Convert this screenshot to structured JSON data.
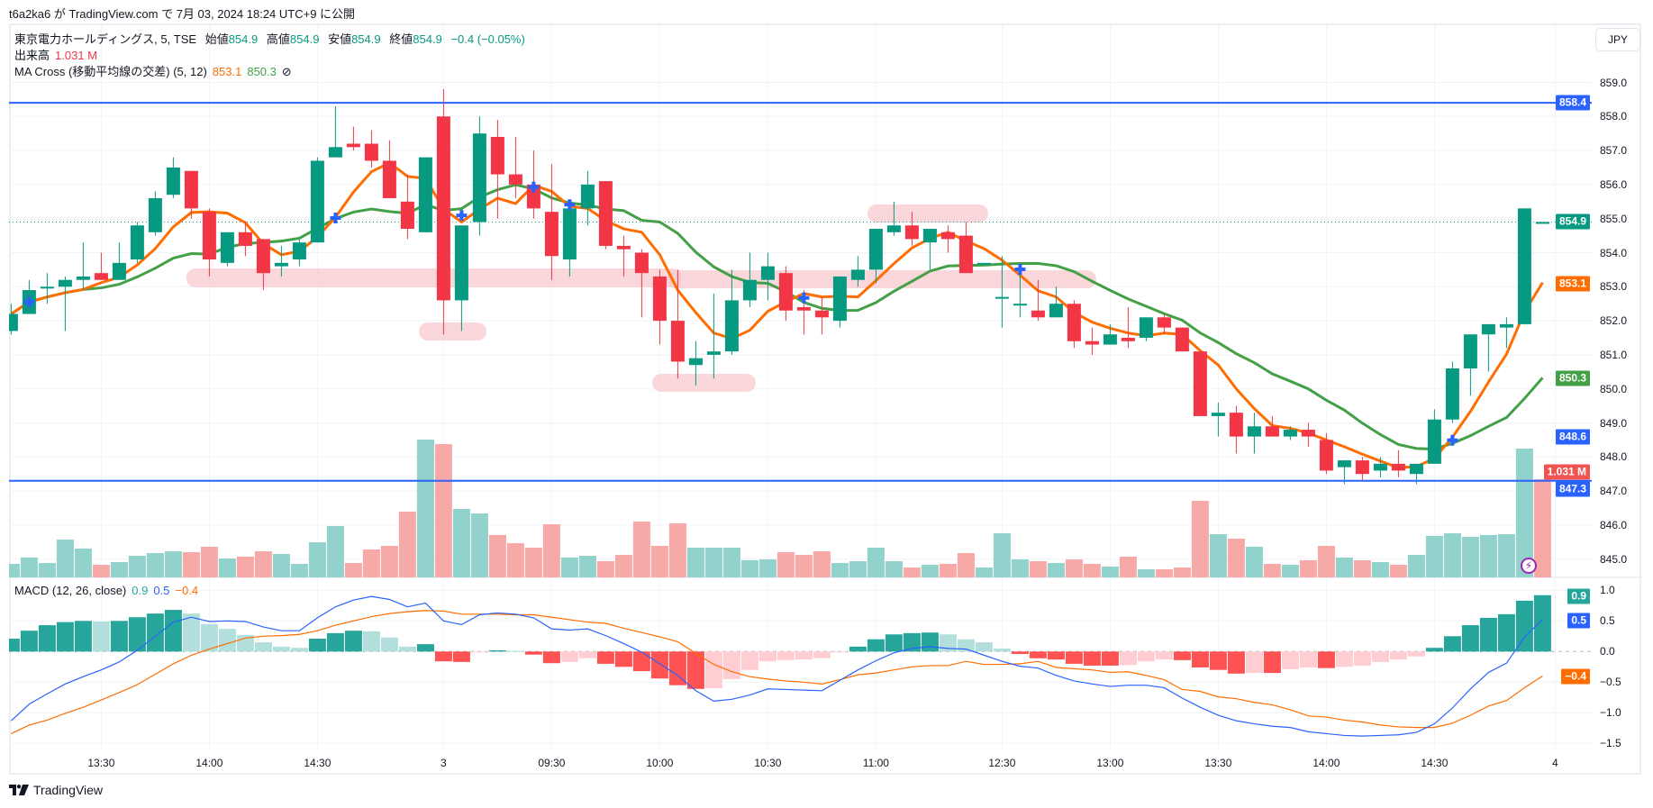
{
  "header": {
    "published": "t6a2ka6 が TradingView.com で 7月 03, 2024 18:24 UTC+9 に公開",
    "symbol": "東京電力ホールディングス, 5, TSE",
    "open_label": "始値",
    "open": "854.9",
    "high_label": "高値",
    "high": "854.9",
    "low_label": "安値",
    "low": "854.9",
    "close_label": "終値",
    "close": "854.9",
    "change": "−0.4 (−0.05%)",
    "volume_label": "出来高",
    "volume": "1.031 M",
    "ma_label": "MA Cross (移動平均線の交差) (5, 12)",
    "ma_fast": "853.1",
    "ma_slow": "850.3",
    "ma_hidden_icon": "⊘",
    "macd_label": "MACD (12, 26, close)",
    "macd_hist": "0.9",
    "macd_line": "0.5",
    "macd_signal": "−0.4"
  },
  "currency_button": "JPY",
  "price_ticks": [
    "859.0",
    "858.0",
    "857.0",
    "856.0",
    "855.0",
    "854.0",
    "853.0",
    "852.0",
    "851.0",
    "850.0",
    "849.0",
    "848.0",
    "847.0",
    "846.0",
    "845.0"
  ],
  "macd_ticks": [
    "1.0",
    "0.5",
    "0.0",
    "−0.5",
    "−1.0",
    "−1.5"
  ],
  "time_ticks": [
    "13:30",
    "14:00",
    "14:30",
    "3",
    "09:30",
    "10:00",
    "10:30",
    "11:00",
    "12:30",
    "13:00",
    "13:30",
    "14:00",
    "14:30",
    "4"
  ],
  "price_badges": [
    {
      "text": "858.4",
      "color": "#2962ff"
    },
    {
      "text": "854.9",
      "color": "#089981"
    },
    {
      "text": "853.1",
      "color": "#ff6d00"
    },
    {
      "text": "850.3",
      "color": "#43a047"
    },
    {
      "text": "848.6",
      "color": "#2962ff"
    },
    {
      "text": "1.031 M",
      "color": "#f05350"
    },
    {
      "text": "847.3",
      "color": "#2962ff"
    }
  ],
  "macd_badges": [
    {
      "text": "0.9",
      "color": "#26a69a"
    },
    {
      "text": "0.5",
      "color": "#2962ff"
    },
    {
      "text": "−0.4",
      "color": "#ff6d00"
    }
  ],
  "logo": "TradingView",
  "colors": {
    "up": "#089981",
    "down": "#f23645",
    "vol_up": "#92d2cc",
    "vol_down": "#f7a9a7",
    "ma_fast": "#ff6d00",
    "ma_slow": "#43a047",
    "hline": "#2962ff",
    "macd": "#2962ff",
    "signal": "#ff6d00",
    "hist_up_strong": "#26a69a",
    "hist_up_weak": "#b2dfdb",
    "hist_down_strong": "#ff5252",
    "hist_down_weak": "#ffcdd2",
    "highlight": "#f8c9ce"
  },
  "chart_data": {
    "type": "candlestick",
    "interval": "5",
    "ohlc": [
      [
        851.7,
        852.5,
        851.6,
        852.2
      ],
      [
        852.2,
        853.2,
        852.2,
        852.9
      ],
      [
        853.0,
        853.4,
        852.5,
        853.0
      ],
      [
        853.0,
        853.3,
        851.7,
        853.2
      ],
      [
        853.2,
        854.3,
        852.9,
        853.3
      ],
      [
        853.4,
        854.0,
        853.2,
        853.2
      ],
      [
        853.2,
        854.3,
        853.2,
        853.7
      ],
      [
        853.8,
        854.9,
        853.7,
        854.8
      ],
      [
        854.6,
        855.8,
        854.5,
        855.6
      ],
      [
        855.7,
        856.8,
        855.6,
        856.5
      ],
      [
        856.4,
        856.4,
        855.0,
        855.3
      ],
      [
        855.2,
        855.3,
        853.3,
        853.8
      ],
      [
        853.7,
        854.6,
        853.6,
        854.6
      ],
      [
        854.6,
        854.9,
        853.9,
        854.2
      ],
      [
        854.4,
        854.4,
        852.9,
        853.4
      ],
      [
        853.6,
        854.2,
        853.3,
        853.7
      ],
      [
        853.8,
        854.4,
        853.6,
        854.3
      ],
      [
        854.3,
        856.8,
        854.3,
        856.7
      ],
      [
        856.8,
        858.3,
        856.8,
        857.1
      ],
      [
        857.2,
        857.7,
        857.0,
        857.1
      ],
      [
        857.2,
        857.6,
        856.5,
        856.7
      ],
      [
        856.7,
        857.3,
        855.6,
        855.6
      ],
      [
        855.5,
        856.3,
        854.4,
        854.7
      ],
      [
        854.6,
        856.8,
        854.6,
        856.8
      ],
      [
        858.0,
        858.8,
        851.6,
        852.6
      ],
      [
        852.6,
        854.8,
        851.7,
        854.8
      ],
      [
        854.9,
        858.0,
        854.5,
        857.5
      ],
      [
        857.4,
        857.9,
        855.0,
        856.3
      ],
      [
        856.3,
        857.4,
        855.6,
        856.0
      ],
      [
        856.0,
        857.0,
        855.0,
        855.3
      ],
      [
        855.2,
        856.6,
        853.2,
        853.9
      ],
      [
        853.8,
        855.3,
        853.3,
        855.3
      ],
      [
        855.3,
        856.4,
        854.8,
        856.0
      ],
      [
        856.1,
        856.1,
        854.1,
        854.2
      ],
      [
        854.2,
        854.5,
        853.3,
        854.1
      ],
      [
        854.0,
        854.1,
        852.1,
        853.4
      ],
      [
        853.3,
        853.5,
        851.3,
        852.0
      ],
      [
        852.0,
        853.5,
        850.3,
        850.8
      ],
      [
        850.7,
        851.4,
        850.1,
        850.9
      ],
      [
        851.0,
        852.8,
        850.3,
        851.1
      ],
      [
        851.1,
        853.5,
        851.0,
        852.6
      ],
      [
        852.6,
        854.0,
        852.4,
        853.2
      ],
      [
        853.2,
        854.0,
        852.6,
        853.6
      ],
      [
        853.4,
        853.6,
        852.0,
        852.3
      ],
      [
        852.4,
        852.9,
        851.6,
        852.3
      ],
      [
        852.3,
        852.7,
        851.6,
        852.1
      ],
      [
        852.0,
        853.3,
        851.8,
        853.3
      ],
      [
        853.2,
        853.9,
        853.0,
        853.5
      ],
      [
        853.5,
        854.7,
        853.1,
        854.7
      ],
      [
        854.6,
        855.5,
        854.5,
        854.8
      ],
      [
        854.8,
        855.2,
        854.2,
        854.4
      ],
      [
        854.3,
        854.7,
        853.5,
        854.7
      ],
      [
        854.6,
        854.8,
        854.0,
        854.4
      ],
      [
        854.5,
        854.9,
        853.4,
        853.4
      ],
      [
        853.7,
        853.7,
        853.7,
        853.7
      ],
      [
        852.7,
        853.9,
        851.8,
        852.7
      ],
      [
        852.5,
        853.5,
        852.1,
        852.5
      ],
      [
        852.3,
        853.2,
        852.0,
        852.1
      ],
      [
        852.1,
        853.0,
        852.1,
        852.5
      ],
      [
        852.5,
        852.6,
        851.2,
        851.4
      ],
      [
        851.4,
        851.8,
        851.0,
        851.3
      ],
      [
        851.3,
        851.9,
        851.3,
        851.6
      ],
      [
        851.5,
        852.4,
        851.2,
        851.4
      ],
      [
        851.5,
        852.1,
        851.4,
        852.1
      ],
      [
        852.1,
        852.2,
        851.6,
        851.8
      ],
      [
        851.8,
        851.8,
        851.1,
        851.1
      ],
      [
        851.1,
        851.1,
        849.2,
        849.2
      ],
      [
        849.2,
        849.6,
        848.6,
        849.3
      ],
      [
        849.3,
        849.5,
        848.1,
        848.6
      ],
      [
        848.6,
        849.3,
        848.1,
        848.9
      ],
      [
        848.9,
        849.2,
        848.6,
        848.6
      ],
      [
        848.6,
        848.9,
        848.5,
        848.8
      ],
      [
        848.8,
        849.0,
        848.3,
        848.6
      ],
      [
        848.5,
        848.7,
        847.5,
        847.6
      ],
      [
        847.7,
        847.9,
        847.2,
        847.9
      ],
      [
        847.9,
        848.0,
        847.3,
        847.5
      ],
      [
        847.6,
        848.0,
        847.4,
        847.8
      ],
      [
        847.8,
        848.2,
        847.4,
        847.6
      ],
      [
        847.5,
        847.8,
        847.2,
        847.8
      ],
      [
        847.8,
        849.4,
        847.8,
        849.1
      ],
      [
        849.1,
        850.8,
        849.0,
        850.6
      ],
      [
        850.6,
        851.6,
        849.8,
        851.6
      ],
      [
        851.6,
        851.9,
        850.5,
        851.9
      ],
      [
        851.8,
        852.1,
        851.2,
        851.9
      ],
      [
        851.9,
        855.3,
        851.9,
        855.3
      ],
      [
        854.9,
        854.9,
        854.9,
        854.9
      ]
    ],
    "volume_millions": [
      0.142,
      0.208,
      0.151,
      0.397,
      0.303,
      0.132,
      0.161,
      0.227,
      0.255,
      0.274,
      0.265,
      0.322,
      0.199,
      0.218,
      0.274,
      0.246,
      0.142,
      0.369,
      0.539,
      0.151,
      0.293,
      0.331,
      0.691,
      1.447,
      1.4,
      0.719,
      0.672,
      0.445,
      0.359,
      0.312,
      0.558,
      0.208,
      0.227,
      0.17,
      0.236,
      0.586,
      0.331,
      0.568,
      0.312,
      0.312,
      0.312,
      0.18,
      0.189,
      0.265,
      0.236,
      0.274,
      0.151,
      0.17,
      0.312,
      0.17,
      0.104,
      0.132,
      0.142,
      0.255,
      0.104,
      0.463,
      0.189,
      0.17,
      0.151,
      0.189,
      0.142,
      0.114,
      0.218,
      0.085,
      0.085,
      0.104,
      0.804,
      0.454,
      0.407,
      0.322,
      0.142,
      0.132,
      0.18,
      0.331,
      0.208,
      0.18,
      0.161,
      0.132,
      0.236,
      0.435,
      0.463,
      0.426,
      0.445,
      0.454,
      1.353,
      1.031
    ],
    "volume_up": [
      1,
      1,
      1,
      1,
      1,
      0,
      1,
      1,
      1,
      1,
      0,
      0,
      1,
      0,
      0,
      1,
      1,
      1,
      1,
      0,
      0,
      0,
      0,
      1,
      0,
      1,
      1,
      0,
      0,
      0,
      0,
      1,
      1,
      0,
      0,
      0,
      0,
      0,
      1,
      1,
      1,
      1,
      1,
      0,
      0,
      0,
      1,
      1,
      1,
      1,
      0,
      1,
      0,
      0,
      1,
      1,
      1,
      0,
      1,
      0,
      0,
      1,
      0,
      1,
      0,
      0,
      0,
      1,
      0,
      1,
      0,
      1,
      0,
      0,
      1,
      0,
      1,
      0,
      1,
      1,
      1,
      1,
      1,
      1,
      1,
      0
    ],
    "ma_periods": [
      5,
      12
    ],
    "ma_cross_bars": [
      1,
      18,
      25,
      29,
      31,
      44,
      56,
      80
    ],
    "horizontal_lines": [
      858.4,
      847.3
    ],
    "last_price": 854.9,
    "price_range": [
      844.6,
      859.6
    ],
    "macd_line": [
      -1.13,
      -0.86,
      -0.69,
      -0.53,
      -0.41,
      -0.3,
      -0.17,
      0.02,
      0.25,
      0.48,
      0.56,
      0.49,
      0.5,
      0.49,
      0.4,
      0.34,
      0.34,
      0.55,
      0.73,
      0.84,
      0.9,
      0.85,
      0.73,
      0.79,
      0.5,
      0.44,
      0.6,
      0.63,
      0.61,
      0.55,
      0.37,
      0.35,
      0.37,
      0.26,
      0.13,
      -0.01,
      -0.2,
      -0.39,
      -0.64,
      -0.81,
      -0.78,
      -0.71,
      -0.61,
      -0.62,
      -0.63,
      -0.64,
      -0.47,
      -0.3,
      -0.15,
      -0.02,
      0.05,
      0.08,
      0.05,
      0.04,
      -0.06,
      -0.16,
      -0.24,
      -0.27,
      -0.39,
      -0.48,
      -0.53,
      -0.57,
      -0.55,
      -0.55,
      -0.59,
      -0.76,
      -0.91,
      -1.04,
      -1.13,
      -1.18,
      -1.22,
      -1.24,
      -1.31,
      -1.34,
      -1.37,
      -1.38,
      -1.37,
      -1.36,
      -1.32,
      -1.18,
      -0.92,
      -0.61,
      -0.34,
      -0.19,
      0.24,
      0.52
    ],
    "macd_hist": [
      0.21,
      0.34,
      0.43,
      0.48,
      0.5,
      0.49,
      0.5,
      0.56,
      0.62,
      0.68,
      0.62,
      0.45,
      0.37,
      0.27,
      0.15,
      0.08,
      0.06,
      0.21,
      0.3,
      0.34,
      0.33,
      0.23,
      0.08,
      0.12,
      -0.16,
      -0.17,
      -0.01,
      0.02,
      0.01,
      -0.05,
      -0.19,
      -0.17,
      -0.11,
      -0.2,
      -0.25,
      -0.32,
      -0.44,
      -0.55,
      -0.61,
      -0.6,
      -0.45,
      -0.3,
      -0.16,
      -0.14,
      -0.13,
      -0.11,
      -0.01,
      0.08,
      0.2,
      0.28,
      0.3,
      0.31,
      0.28,
      0.2,
      0.15,
      0.05,
      -0.04,
      -0.11,
      -0.13,
      -0.2,
      -0.23,
      -0.23,
      -0.22,
      -0.16,
      -0.13,
      -0.14,
      -0.26,
      -0.3,
      -0.36,
      -0.35,
      -0.35,
      -0.29,
      -0.26,
      -0.27,
      -0.25,
      -0.23,
      -0.17,
      -0.13,
      -0.08,
      0.06,
      0.25,
      0.43,
      0.55,
      0.61,
      0.83,
      0.92
    ],
    "macd_range": [
      -1.6,
      1.05
    ]
  }
}
